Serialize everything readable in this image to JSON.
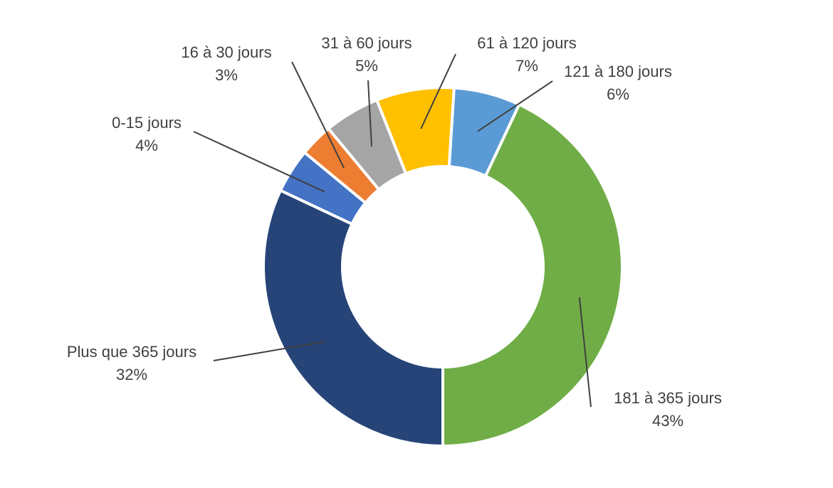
{
  "chart_data": {
    "type": "pie",
    "donut": true,
    "title": "",
    "legend": "none",
    "start_angle_deg": 180,
    "direction": "clockwise",
    "slices": [
      {
        "label": "Plus que 365 jours",
        "value": 32,
        "value_label": "32%",
        "color": "#264478"
      },
      {
        "label": "0-15 jours",
        "value": 4,
        "value_label": "4%",
        "color": "#4472C4"
      },
      {
        "label": "16 à 30 jours",
        "value": 3,
        "value_label": "3%",
        "color": "#ED7D31"
      },
      {
        "label": "31 à 60 jours",
        "value": 5,
        "value_label": "5%",
        "color": "#A5A5A5"
      },
      {
        "label": "61 à 120 jours",
        "value": 7,
        "value_label": "7%",
        "color": "#FFC000"
      },
      {
        "label": "121 à 180 jours",
        "value": 6,
        "value_label": "6%",
        "color": "#5B9BD5"
      },
      {
        "label": "181 à 365 jours",
        "value": 43,
        "value_label": "43%",
        "color": "#70AD47"
      }
    ]
  }
}
